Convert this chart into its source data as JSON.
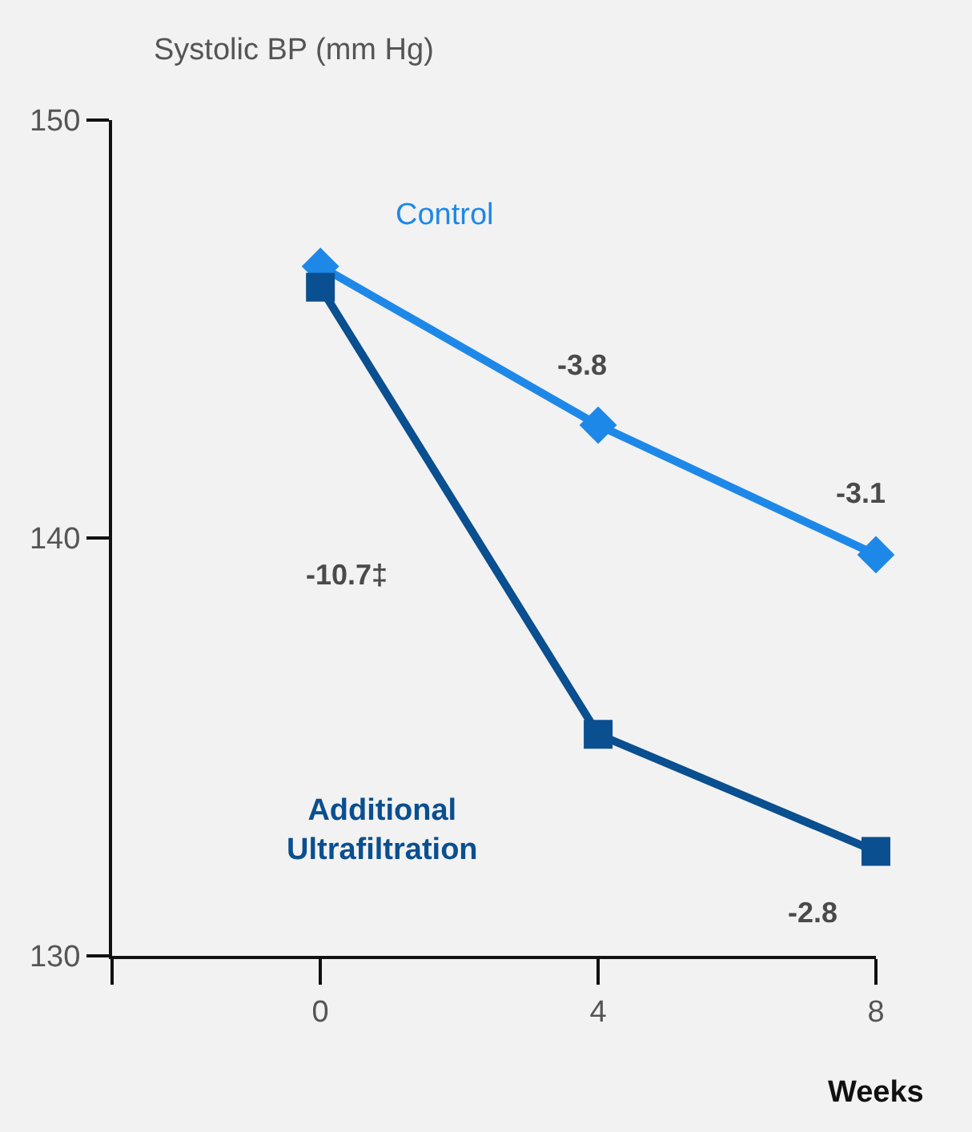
{
  "chart_data": {
    "type": "line",
    "ylabel": "Systolic BP (mm Hg)",
    "xlabel": "Weeks",
    "x": [
      0,
      4,
      8
    ],
    "series": [
      {
        "name": "Control",
        "color": "#1e88e8",
        "values": [
          146.5,
          142.7,
          139.6
        ],
        "marker": "diamond"
      },
      {
        "name": "Additional Ultrafiltration",
        "color": "#0a4f8f",
        "values": [
          146.0,
          135.3,
          132.5
        ],
        "marker": "square"
      }
    ],
    "xlim": [
      -3,
      8
    ],
    "xticks": [
      {
        "value": -3,
        "label": null
      },
      0,
      4,
      8
    ],
    "ylim": [
      130,
      150
    ],
    "yticks": [
      130,
      140,
      150
    ],
    "annotations": [
      "-3.8",
      "-3.1",
      "-10.7‡",
      "-2.8"
    ],
    "grid": false,
    "legend": false,
    "line_style": "solid"
  }
}
